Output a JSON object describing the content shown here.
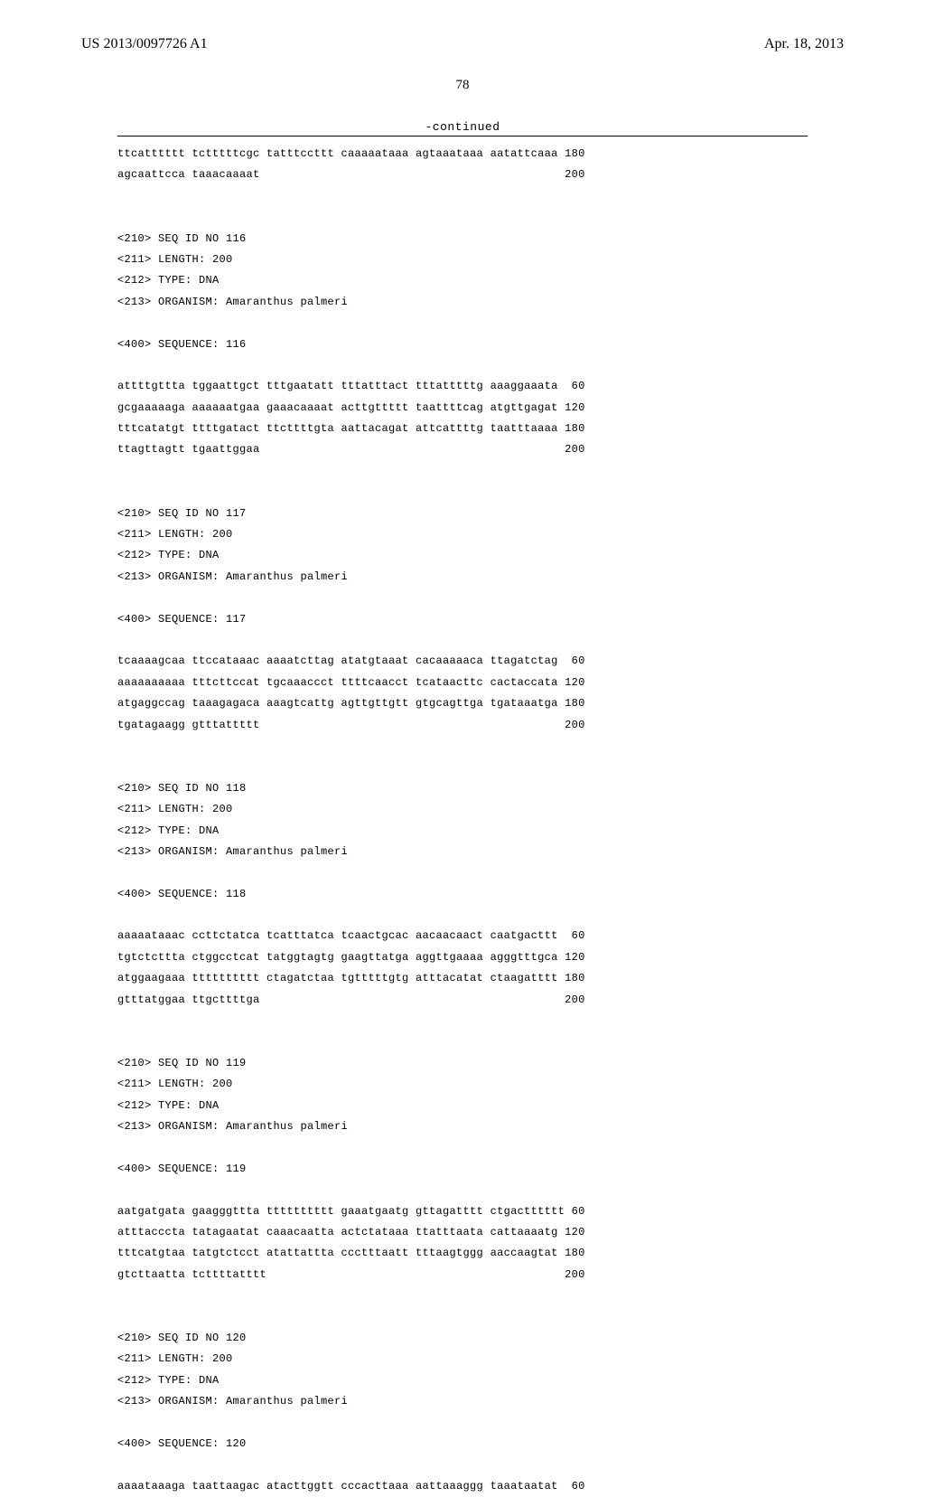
{
  "header": {
    "pub_number": "US 2013/0097726 A1",
    "pub_date": "Apr. 18, 2013"
  },
  "page_number": "78",
  "continued_label": "-continued",
  "sequences": {
    "lead_in": {
      "lines": [
        {
          "seq": "ttcatttttt tctttttcgc tatttccttt caaaaataaa agtaaataaa aatattcaaa",
          "pos": "180"
        },
        {
          "seq": "agcaattcca taaacaaaat",
          "pos": "200"
        }
      ]
    },
    "blocks": [
      {
        "id": "116",
        "length": "200",
        "type": "DNA",
        "organism": "Amaranthus palmeri",
        "lines": [
          {
            "seq": "attttgttta tggaattgct tttgaatatt tttatttact tttatttttg aaaggaaata",
            "pos": "60"
          },
          {
            "seq": "gcgaaaaaga aaaaaatgaa gaaacaaaat acttgttttt taattttcag atgttgagat",
            "pos": "120"
          },
          {
            "seq": "tttcatatgt ttttgatact ttcttttgta aattacagat attcattttg taatttaaaa",
            "pos": "180"
          },
          {
            "seq": "ttagttagtt tgaattggaa",
            "pos": "200"
          }
        ]
      },
      {
        "id": "117",
        "length": "200",
        "type": "DNA",
        "organism": "Amaranthus palmeri",
        "lines": [
          {
            "seq": "tcaaaagcaa ttccataaac aaaatcttag atatgtaaat cacaaaaaca ttagatctag",
            "pos": "60"
          },
          {
            "seq": "aaaaaaaaaa tttcttccat tgcaaaccct ttttcaacct tcataacttc cactaccata",
            "pos": "120"
          },
          {
            "seq": "atgaggccag taaagagaca aaagtcattg agttgttgtt gtgcagttga tgataaatga",
            "pos": "180"
          },
          {
            "seq": "tgatagaagg gtttattttt",
            "pos": "200"
          }
        ]
      },
      {
        "id": "118",
        "length": "200",
        "type": "DNA",
        "organism": "Amaranthus palmeri",
        "lines": [
          {
            "seq": "aaaaataaac ccttctatca tcatttatca tcaactgcac aacaacaact caatgacttt",
            "pos": "60"
          },
          {
            "seq": "tgtctcttta ctggcctcat tatggtagtg gaagttatga aggttgaaaa agggtttgca",
            "pos": "120"
          },
          {
            "seq": "atggaagaaa tttttttttt ctagatctaa tgtttttgtg atttacatat ctaagatttt",
            "pos": "180"
          },
          {
            "seq": "gtttatggaa ttgcttttga",
            "pos": "200"
          }
        ]
      },
      {
        "id": "119",
        "length": "200",
        "type": "DNA",
        "organism": "Amaranthus palmeri",
        "lines": [
          {
            "seq": "aatgatgata gaagggttta tttttttttt gaaatgaatg gttagatttt ctgactttttt",
            "pos": "60"
          },
          {
            "seq": "atttacccta tatagaatat caaacaatta actctataaa ttatttaata cattaaaatg",
            "pos": "120"
          },
          {
            "seq": "tttcatgtaa tatgtctcct atattattta ccctttaatt tttaagtggg aaccaagtat",
            "pos": "180"
          },
          {
            "seq": "gtcttaatta tcttttatttt",
            "pos": "200"
          }
        ]
      },
      {
        "id": "120",
        "length": "200",
        "type": "DNA",
        "organism": "Amaranthus palmeri",
        "lines": [
          {
            "seq": "aaaataaaga taattaagac atacttggtt cccacttaaa aattaaaggg taaataatat",
            "pos": "60"
          }
        ]
      }
    ]
  }
}
